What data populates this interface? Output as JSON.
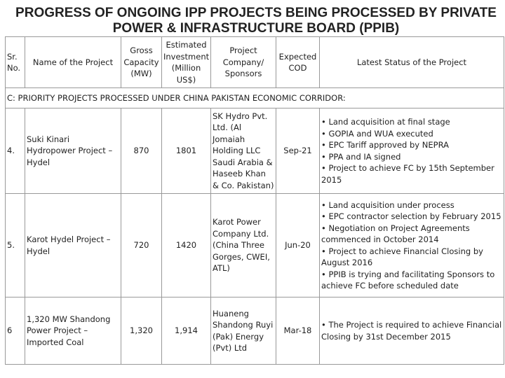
{
  "header": {
    "title": "PROGRESS OF ONGOING IPP PROJECTS BEING PROCESSED BY PRIVATE POWER & INFRASTRUCTURE BOARD (PPIB)"
  },
  "table": {
    "columns": [
      "Sr. No.",
      "Name of the Project",
      "Gross Capacity (MW)",
      "Estimated Investment (Million US$)",
      "Project Company/ Sponsors",
      "Expected COD",
      "Latest Status of the Project"
    ],
    "section": "C: PRIORITY PROJECTS PROCESSED UNDER CHINA PAKISTAN ECONOMIC CORRIDOR:",
    "rows": [
      {
        "sr": "4.",
        "name": "Suki Kinari Hydropower Project – Hydel",
        "capacity": "870",
        "investment": "1801",
        "sponsors": "SK Hydro Pvt. Ltd. (Al Jomaiah Holding LLC Saudi Arabia & Haseeb Khan & Co. Pakistan)",
        "cod": "Sep-21",
        "status": [
          "Land acquisition at final stage",
          "GOPIA and WUA executed",
          "EPC Tariff approved by NEPRA",
          "PPA and IA signed",
          "Project to achieve FC by 15th September 2015"
        ]
      },
      {
        "sr": "5.",
        "name": "Karot Hydel Project – Hydel",
        "capacity": "720",
        "investment": "1420",
        "sponsors": "Karot Power Company Ltd. (China Three Gorges, CWEI, ATL)",
        "cod": "Jun-20",
        "status": [
          "Land acquisition under process",
          "EPC contractor selection by February 2015",
          "Negotiation on Project Agreements commenced in October 2014",
          "Project to achieve Financial Closing by August 2016",
          "PPIB is trying and facilitating Sponsors to achieve FC before scheduled date"
        ]
      },
      {
        "sr": "6",
        "name": "1,320 MW Shandong Power Project – Imported Coal",
        "capacity": "1,320",
        "investment": "1,914",
        "sponsors": "Huaneng Shandong Ruyi (Pak) Energy (Pvt) Ltd",
        "cod": "Mar-18",
        "status": [
          "The Project is required to achieve Financial Closing by 31st December 2015"
        ]
      }
    ]
  }
}
